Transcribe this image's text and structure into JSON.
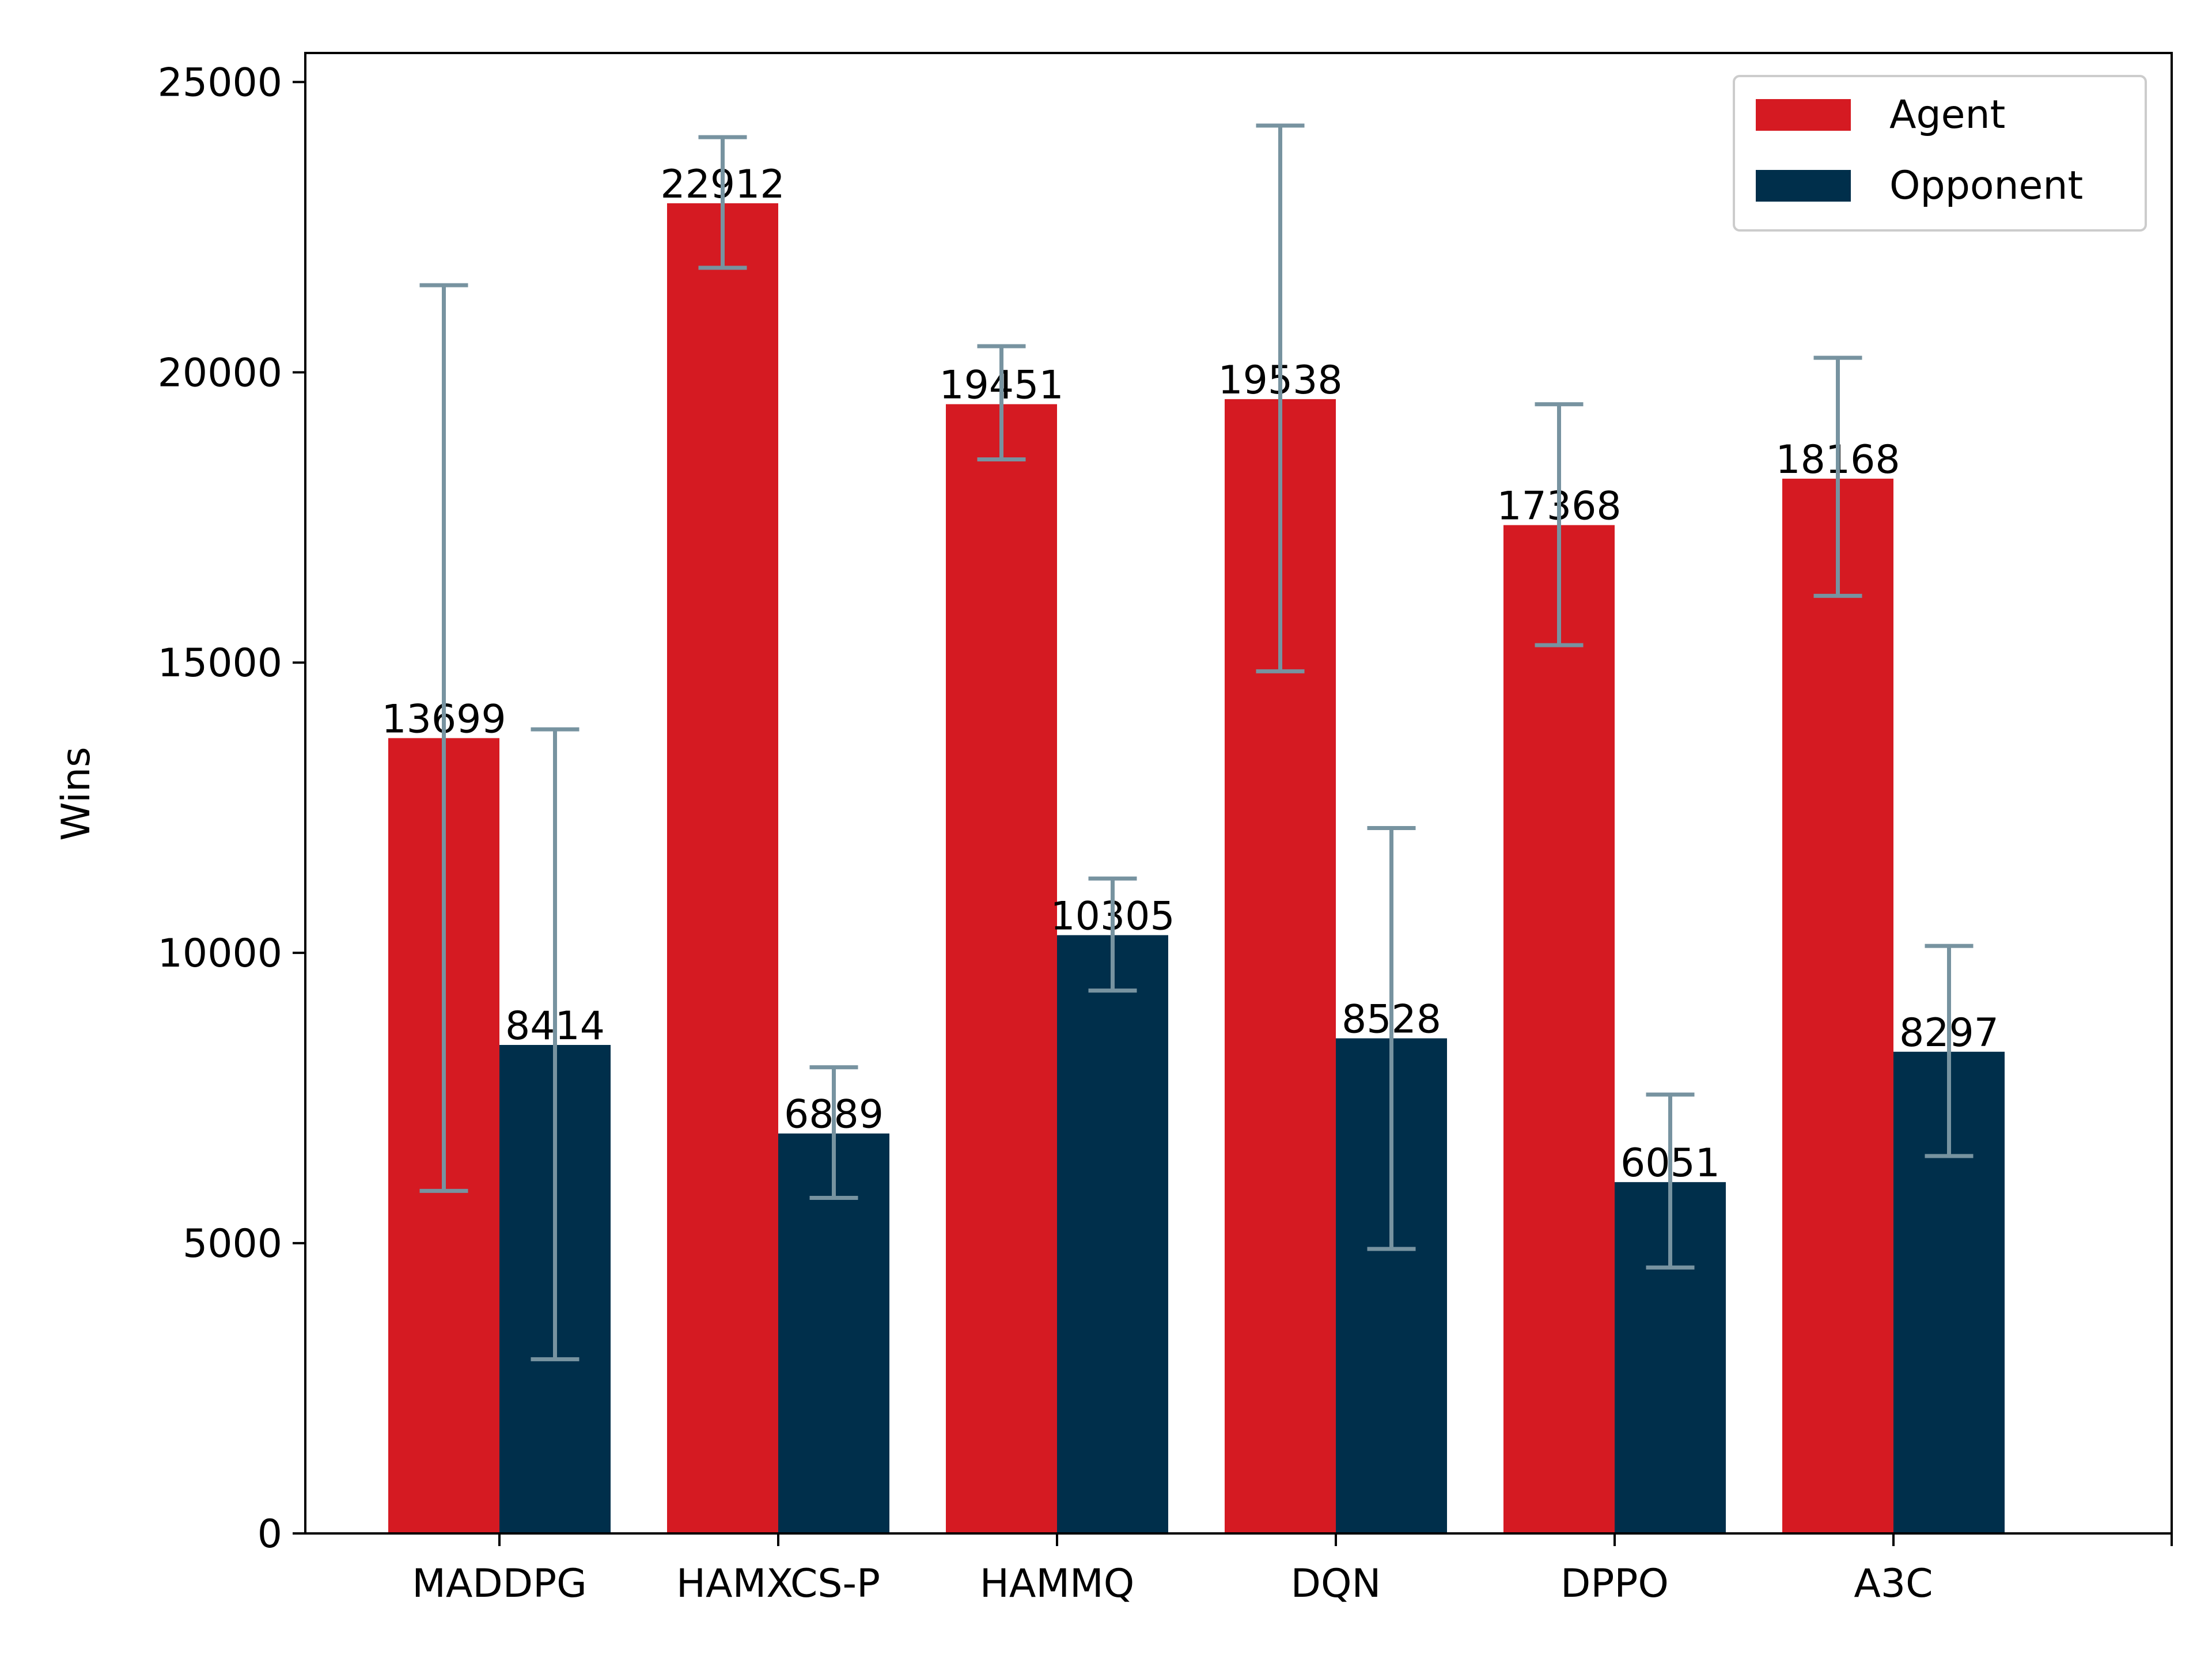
{
  "chart_data": {
    "type": "bar",
    "title": "",
    "xlabel": "",
    "ylabel": "Wins",
    "ylim": [
      0,
      25500
    ],
    "yticks": [
      0,
      5000,
      10000,
      15000,
      20000,
      25000
    ],
    "ytick_labels": [
      "0",
      "5000",
      "10000",
      "15000",
      "20000",
      "25000"
    ],
    "categories": [
      "MADDPG",
      "HAMXCS-P",
      "HAMMQ",
      "DQN",
      "DPPO",
      "A3C"
    ],
    "legend_position": "top-right",
    "grid": false,
    "series": [
      {
        "name": "Agent",
        "color": "#d51a22",
        "values": [
          13699,
          22912,
          19451,
          19538,
          17368,
          18168
        ],
        "value_labels": [
          "13699",
          "22912",
          "19451",
          "19538",
          "17368",
          "18168"
        ],
        "err_low": [
          5900,
          21800,
          18500,
          14850,
          15300,
          16150
        ],
        "err_high": [
          21500,
          24050,
          20450,
          24250,
          19450,
          20250
        ]
      },
      {
        "name": "Opponent",
        "color": "#002f4b",
        "values": [
          8414,
          6889,
          10305,
          8528,
          6051,
          8297
        ],
        "value_labels": [
          "8414",
          "6889",
          "10305",
          "8528",
          "6051",
          "8297"
        ],
        "err_low": [
          3000,
          5780,
          9350,
          4900,
          4580,
          6500
        ],
        "err_high": [
          13850,
          8030,
          11280,
          12150,
          7560,
          10120
        ]
      }
    ],
    "errorbar_color": "#7793a0"
  }
}
